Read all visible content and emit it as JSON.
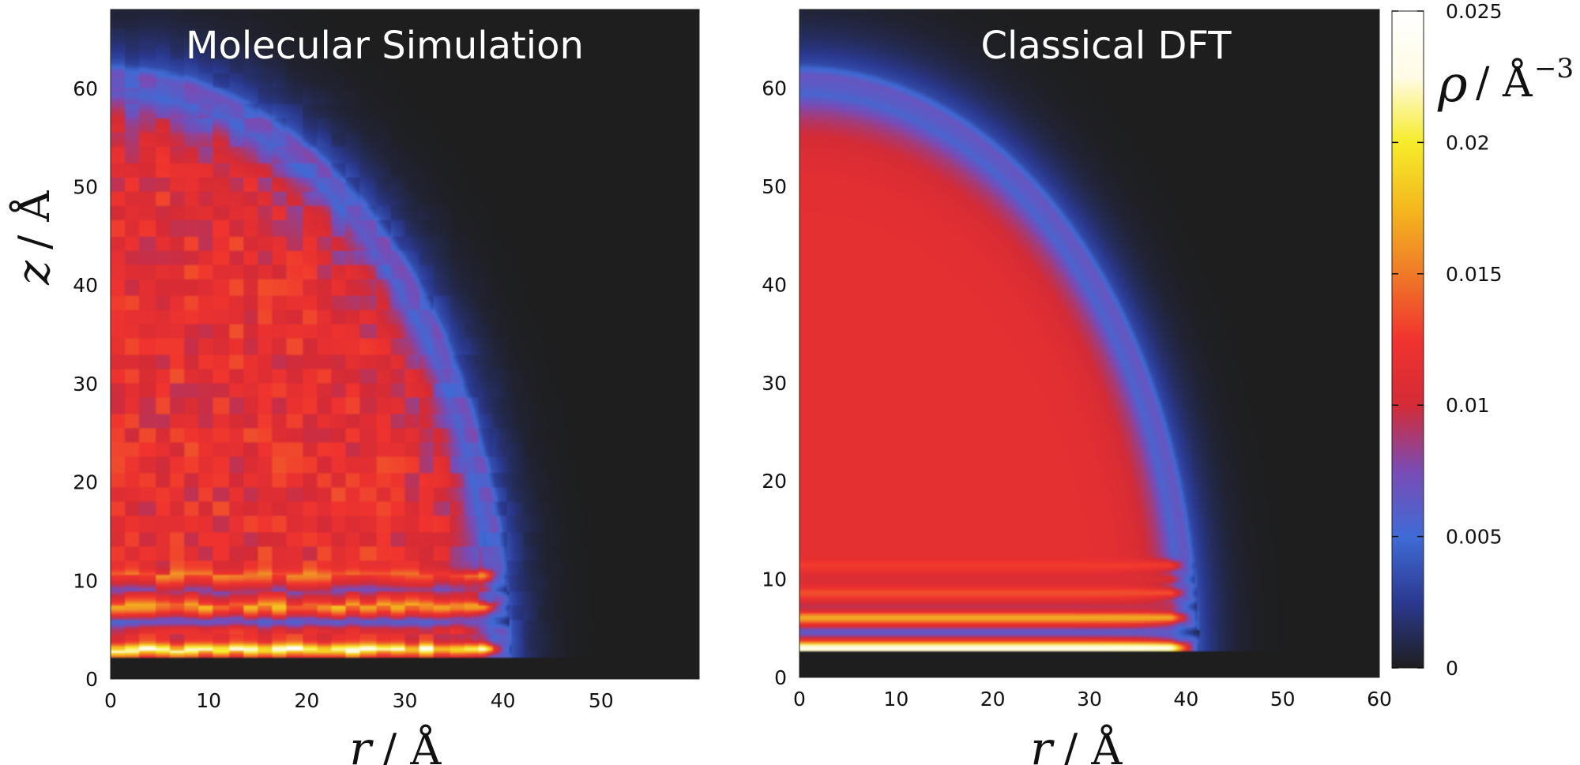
{
  "chart_data": {
    "type": "heatmap",
    "colorbar": {
      "ticks": [
        "0",
        "0.005",
        "0.01",
        "0.015",
        "0.02",
        "0.025"
      ],
      "tick_values": [
        0,
        0.005,
        0.01,
        0.015,
        0.02,
        0.025
      ],
      "range": [
        0,
        0.025
      ],
      "label_symbol": "ρ",
      "label_unit": "/ Å",
      "label_exponent": "−3",
      "colors": [
        "#1e1e1e",
        "#2b3990",
        "#3f6bd6",
        "#7a4bb5",
        "#d42b36",
        "#f0332e",
        "#f07a28",
        "#f4b81e",
        "#f6ec2a",
        "#fffbe6",
        "#ffffff"
      ]
    },
    "panels": [
      {
        "title": "Molecular Simulation",
        "xlabel": "r",
        "xunit": "/ Å",
        "ylabel": "z",
        "yunit": "/ Å",
        "xticks": [
          "0",
          "10",
          "20",
          "30",
          "40",
          "50"
        ],
        "xtick_values": [
          0,
          10,
          20,
          30,
          40,
          50
        ],
        "yticks": [
          "0",
          "10",
          "20",
          "30",
          "40",
          "50",
          "60"
        ],
        "ytick_values": [
          0,
          10,
          20,
          30,
          40,
          50,
          60
        ],
        "xlim": [
          0,
          60
        ],
        "ylim": [
          0,
          68
        ],
        "droplet": {
          "bulk_density": 0.0115,
          "radius_r": 40,
          "height_z": 61,
          "substrate_z": 2.2
        },
        "layers": [
          {
            "z": 3.0,
            "density": 0.021
          },
          {
            "z": 5.8,
            "density": 0.0065
          },
          {
            "z": 7.3,
            "density": 0.0155
          },
          {
            "z": 9.0,
            "density": 0.0085
          },
          {
            "z": 10.5,
            "density": 0.014
          }
        ],
        "noisy": true
      },
      {
        "title": "Classical DFT",
        "xlabel": "r",
        "xunit": "/ Å",
        "ylabel": "",
        "yunit": "",
        "xticks": [
          "0",
          "10",
          "20",
          "30",
          "40",
          "50",
          "60"
        ],
        "xtick_values": [
          0,
          10,
          20,
          30,
          40,
          50,
          60
        ],
        "yticks": [
          "0",
          "10",
          "20",
          "30",
          "40",
          "50",
          "60"
        ],
        "ytick_values": [
          0,
          10,
          20,
          30,
          40,
          50,
          60
        ],
        "xlim": [
          0,
          60
        ],
        "ylim": [
          0,
          68
        ],
        "droplet": {
          "bulk_density": 0.0115,
          "radius_r": 40.5,
          "height_z": 61,
          "substrate_z": 2.7
        },
        "layers": [
          {
            "z": 3.0,
            "density": 0.024
          },
          {
            "z": 4.6,
            "density": 0.0062
          },
          {
            "z": 6.1,
            "density": 0.0172
          },
          {
            "z": 7.2,
            "density": 0.0095
          },
          {
            "z": 8.6,
            "density": 0.0135
          },
          {
            "z": 10.0,
            "density": 0.0105
          },
          {
            "z": 11.4,
            "density": 0.0128
          }
        ],
        "noisy": false
      }
    ]
  }
}
